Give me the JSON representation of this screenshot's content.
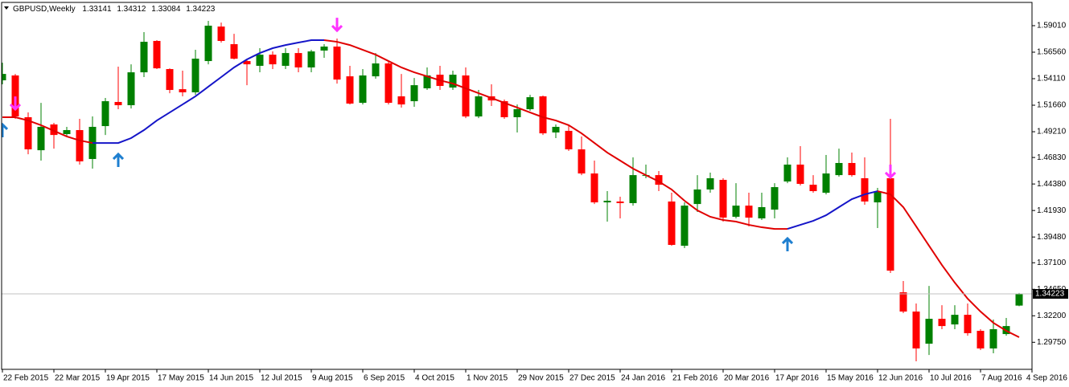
{
  "chart_data": {
    "type": "candlestick",
    "title": "GBPUSD,Weekly",
    "categories": [
      "22 Feb 2015",
      null,
      null,
      null,
      "22 Mar 2015",
      null,
      null,
      null,
      "19 Apr 2015",
      null,
      null,
      null,
      "17 May 2015",
      null,
      null,
      null,
      "14 Jun 2015",
      null,
      null,
      null,
      "12 Jul 2015",
      null,
      null,
      null,
      "9 Aug 2015",
      null,
      null,
      null,
      "6 Sep 2015",
      null,
      null,
      null,
      "4 Oct 2015",
      null,
      null,
      null,
      "1 Nov 2015",
      null,
      null,
      null,
      "29 Nov 2015",
      null,
      null,
      null,
      "27 Dec 2015",
      null,
      null,
      null,
      "24 Jan 2016",
      null,
      null,
      null,
      "21 Feb 2016",
      null,
      null,
      null,
      "20 Mar 2016",
      null,
      null,
      null,
      "17 Apr 2016",
      null,
      null,
      null,
      "15 May 2016",
      null,
      null,
      null,
      "12 Jun 2016",
      null,
      null,
      null,
      "10 Jul 2016",
      null,
      null,
      null,
      "7 Aug 2016",
      null,
      null,
      null,
      "4 Sep 2016"
    ],
    "open": [
      1.5396,
      1.5441,
      1.5055,
      1.475,
      1.4988,
      1.4899,
      1.4936,
      1.4669,
      1.4973,
      1.5196,
      1.5166,
      1.547,
      1.576,
      1.55,
      1.5314,
      1.5285,
      1.5574,
      1.5893,
      1.573,
      1.5574,
      1.553,
      1.5633,
      1.553,
      1.5648,
      1.5515,
      1.5671,
      1.5708,
      1.5433,
      1.5188,
      1.5433,
      1.5552,
      1.5248,
      1.5203,
      1.5322,
      1.5448,
      1.5329,
      1.5441,
      1.5062,
      1.5248,
      1.5203,
      1.5055,
      1.5129,
      1.5248,
      1.4914,
      1.4929,
      1.4758,
      1.4535,
      1.4268,
      1.4276,
      1.4261,
      1.4513,
      1.452,
      1.4276,
      1.3867,
      1.4253,
      1.4387,
      1.4476,
      1.4135,
      1.4238,
      1.412,
      1.4201,
      1.4461,
      1.4617,
      1.4431,
      1.4357,
      1.452,
      1.4632,
      1.4491,
      1.4268,
      1.4491,
      1.3437,
      1.3259,
      1.2962,
      1.3192,
      1.314,
      1.3229,
      1.3081,
      1.2918,
      1.3051,
      1.33141,
      null
    ],
    "high": [
      1.5559,
      1.5455,
      1.5099,
      1.5188,
      1.5003,
      1.4966,
      1.504,
      1.5062,
      1.5233,
      1.5522,
      1.5544,
      1.5841,
      1.5767,
      1.5507,
      1.5485,
      1.5678,
      1.5945,
      1.593,
      1.5826,
      1.5596,
      1.5693,
      1.5663,
      1.5693,
      1.5693,
      1.5678,
      1.573,
      1.5782,
      1.553,
      1.55,
      1.5648,
      1.5574,
      1.5455,
      1.5418,
      1.5515,
      1.553,
      1.5485,
      1.5515,
      1.5307,
      1.5359,
      1.5218,
      1.5173,
      1.5262,
      1.5255,
      1.4988,
      1.4988,
      1.4877,
      1.4654,
      1.4372,
      1.432,
      1.4684,
      1.4617,
      1.4558,
      1.4357,
      1.4268,
      1.452,
      1.4543,
      1.4491,
      1.4446,
      1.4357,
      1.4357,
      1.4446,
      1.4684,
      1.4788,
      1.452,
      1.4706,
      1.4765,
      1.4728,
      1.4684,
      1.4402,
      1.504,
      1.3541,
      1.3333,
      1.3496,
      1.3318,
      1.3318,
      1.3333,
      1.3096,
      1.3185,
      1.32,
      1.34312,
      null
    ],
    "low": [
      1.5359,
      1.504,
      1.4713,
      1.4654,
      1.4765,
      1.4877,
      1.4617,
      1.458,
      1.4891,
      1.5129,
      1.5136,
      1.5426,
      1.55,
      1.5277,
      1.5248,
      1.5262,
      1.5544,
      1.5745,
      1.5589,
      1.5351,
      1.547,
      1.55,
      1.55,
      1.547,
      1.547,
      1.5604,
      1.5366,
      1.5173,
      1.5173,
      1.5411,
      1.5173,
      1.5144,
      1.5151,
      1.5307,
      1.5307,
      1.5307,
      1.5047,
      1.5047,
      1.5159,
      1.504,
      1.4914,
      1.5114,
      1.4891,
      1.4862,
      1.4743,
      1.452,
      1.4253,
      1.409,
      1.412,
      1.4238,
      1.4491,
      1.4372,
      1.3867,
      1.3845,
      1.4179,
      1.4357,
      1.409,
      1.412,
      1.4046,
      1.4105,
      1.412,
      1.4446,
      1.4424,
      1.4357,
      1.4342,
      1.4506,
      1.4506,
      1.4246,
      1.4031,
      1.3615,
      1.3244,
      1.2799,
      1.2858,
      1.3096,
      1.3096,
      1.3036,
      1.2903,
      1.2873,
      1.3036,
      1.33084,
      null
    ],
    "close": [
      1.5455,
      1.5062,
      1.4758,
      1.4966,
      1.4891,
      1.4936,
      1.4647,
      1.4966,
      1.5203,
      1.5166,
      1.547,
      1.5752,
      1.5507,
      1.5307,
      1.5285,
      1.5596,
      1.5901,
      1.576,
      1.5596,
      1.5544,
      1.5633,
      1.5544,
      1.5648,
      1.5515,
      1.5663,
      1.5708,
      1.5403,
      1.5181,
      1.5441,
      1.5552,
      1.5188,
      1.5173,
      1.5351,
      1.5441,
      1.5344,
      1.5448,
      1.5062,
      1.5248,
      1.521,
      1.5055,
      1.5129,
      1.524,
      1.4906,
      1.4966,
      1.4758,
      1.4535,
      1.4268,
      1.4283,
      1.4261,
      1.452,
      1.452,
      1.4431,
      1.3875,
      1.4238,
      1.4387,
      1.4491,
      1.4127,
      1.4238,
      1.4127,
      1.4224,
      1.4409,
      1.4617,
      1.4439,
      1.4372,
      1.4535,
      1.4632,
      1.452,
      1.4276,
      1.4372,
      1.3637,
      1.3259,
      1.2918,
      1.3192,
      1.3125,
      1.3229,
      1.3059,
      1.2918,
      1.3096,
      1.3125,
      1.34223,
      null
    ],
    "bull_color": "#008000",
    "bear_color": "#ff0000",
    "lines": [
      {
        "color": "#e00000",
        "values": [
          1.5055,
          1.5055,
          1.5025,
          1.4981,
          1.4929,
          1.4877,
          1.484,
          1.4817,
          null,
          null,
          null,
          null,
          null,
          null,
          null,
          null,
          null,
          null,
          null,
          null,
          null,
          null,
          null,
          null,
          null,
          1.5767,
          1.5752,
          1.5722,
          1.5678,
          1.5633,
          1.5574,
          1.5515,
          1.547,
          1.5433,
          1.5396,
          1.5366,
          1.5322,
          1.5277,
          1.5233,
          1.5188,
          1.5144,
          1.5099,
          1.5055,
          1.5025,
          1.4981,
          1.4906,
          1.4817,
          1.4728,
          1.4654,
          1.458,
          1.452,
          1.4461,
          1.4387,
          1.4283,
          1.4194,
          1.4135,
          1.4105,
          1.409,
          1.406,
          1.4038,
          1.4023,
          1.4023,
          null,
          null,
          null,
          null,
          null,
          null,
          1.4372,
          1.4342,
          1.4224,
          1.4046,
          1.3867,
          1.3689,
          1.3526,
          1.3378,
          1.3259,
          1.3155,
          1.3081,
          1.3022,
          null
        ]
      },
      {
        "color": "#1515c8",
        "values": [
          null,
          null,
          null,
          null,
          null,
          null,
          null,
          1.4817,
          1.4817,
          1.4817,
          1.4862,
          1.4936,
          1.5025,
          1.5099,
          1.5173,
          1.5248,
          1.5337,
          1.5426,
          1.5515,
          1.5589,
          1.5648,
          1.5693,
          1.5722,
          1.5745,
          1.5767,
          1.5767,
          null,
          null,
          null,
          null,
          null,
          null,
          null,
          null,
          null,
          null,
          null,
          null,
          null,
          null,
          null,
          null,
          null,
          null,
          null,
          null,
          null,
          null,
          null,
          null,
          null,
          null,
          null,
          null,
          null,
          null,
          null,
          null,
          null,
          null,
          null,
          1.4023,
          1.406,
          1.4097,
          1.4149,
          1.4224,
          1.4298,
          1.4342,
          1.4372,
          null,
          null,
          null,
          null,
          null,
          null,
          null,
          null,
          null,
          null,
          null,
          null
        ]
      }
    ],
    "buy_signals": {
      "color": "#1e7fd0",
      "x": [
        0,
        9,
        61
      ],
      "values": [
        1.4929,
        1.4654,
        1.3875
      ]
    },
    "sell_signals": {
      "color": "#ff33ff",
      "x": [
        1,
        26,
        69
      ],
      "values": [
        1.5188,
        1.5915,
        1.4558
      ]
    },
    "ylim": [
      1.2725,
      1.6116
    ],
    "yticks": [
      {
        "value": 1.5901,
        "label": "1.59010"
      },
      {
        "value": 1.5656,
        "label": "1.56560"
      },
      {
        "value": 1.5411,
        "label": "1.54110"
      },
      {
        "value": 1.5166,
        "label": "1.51660"
      },
      {
        "value": 1.4921,
        "label": "1.49210"
      },
      {
        "value": 1.4683,
        "label": "1.46830"
      },
      {
        "value": 1.4438,
        "label": "1.44380"
      },
      {
        "value": 1.4193,
        "label": "1.41930"
      },
      {
        "value": 1.3948,
        "label": "1.39480"
      },
      {
        "value": 1.371,
        "label": "1.37100"
      },
      {
        "value": 1.3465,
        "label": "1.34650"
      },
      {
        "value": 1.322,
        "label": "1.32200"
      },
      {
        "value": 1.2975,
        "label": "1.29750"
      }
    ]
  }
}
